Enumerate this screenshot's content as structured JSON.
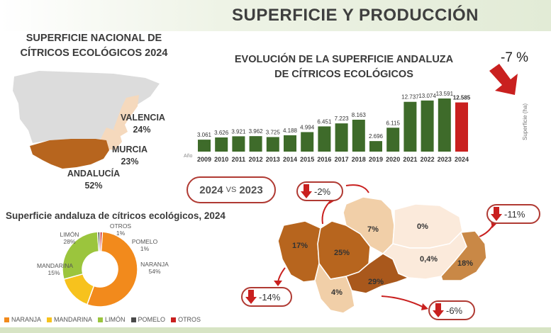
{
  "header": {
    "title": "SUPERFICIE Y PRODUCCIÓN"
  },
  "national": {
    "title_line1": "SUPERFICIE NACIONAL DE",
    "title_line2": "CÍTRICOS ECOLÓGICOS 2024",
    "regions": [
      {
        "name": "VALENCIA",
        "pct": "24%"
      },
      {
        "name": "MURCIA",
        "pct": "23%"
      },
      {
        "name": "ANDALUCÍA",
        "pct": "52%"
      }
    ]
  },
  "evolution": {
    "title_line1": "EVOLUCIÓN DE LA SUPERFICIE ANDALUZA",
    "title_line2": "DE CÍTRICOS ECOLÓGICOS",
    "change": "-7 %"
  },
  "comparison": {
    "year_a": "2024",
    "vs": "VS",
    "year_b": "2023",
    "changes": [
      {
        "id": "north",
        "value": "-2%"
      },
      {
        "id": "east",
        "value": "-11%"
      },
      {
        "id": "west",
        "value": "-14%"
      },
      {
        "id": "south",
        "value": "-6%"
      }
    ],
    "provinces": [
      {
        "id": "huelva",
        "pct": "17%"
      },
      {
        "id": "sevilla",
        "pct": "25%"
      },
      {
        "id": "cordoba",
        "pct": "7%"
      },
      {
        "id": "jaen",
        "pct": "0%"
      },
      {
        "id": "granada",
        "pct": "0,4%"
      },
      {
        "id": "almeria",
        "pct": "18%"
      },
      {
        "id": "malaga",
        "pct": "29%"
      },
      {
        "id": "cadiz",
        "pct": "4%"
      }
    ]
  },
  "pie": {
    "title": "Superficie andaluza de cítricos ecológicos, 2024"
  },
  "colors": {
    "bar": "#3e6b2a",
    "bar_highlight": "#c9201f",
    "naranja": "#f28a1c",
    "mandarina": "#f7c21d",
    "limon": "#9bc53d",
    "pomelo": "#4a4a4a",
    "otros": "#c9201f",
    "andalucia": "#b7651e",
    "valencia_murcia": "#f5d9bd",
    "spain": "#dcdcdc"
  },
  "chart_data": [
    {
      "type": "bar",
      "title": "EVOLUCIÓN DE LA SUPERFICIE ANDALUZA DE CÍTRICOS ECOLÓGICOS",
      "xlabel": "Año",
      "ylabel": "Superficie (ha)",
      "categories": [
        "2009",
        "2010",
        "2011",
        "2012",
        "2013",
        "2014",
        "2015",
        "2016",
        "2017",
        "2018",
        "2019",
        "2020",
        "2021",
        "2022",
        "2023",
        "2024"
      ],
      "values": [
        3061,
        3626,
        3921,
        3962,
        3725,
        4188,
        4994,
        6451,
        7223,
        8163,
        2696,
        6115,
        12737,
        13074,
        13591,
        12585
      ],
      "value_labels": [
        "3.061",
        "3.626",
        "3.921",
        "3.962",
        "3.725",
        "4.188",
        "4.994",
        "6.451",
        "7.223",
        "8.163",
        "2.696",
        "6.115",
        "12.737",
        "13.074",
        "13.591",
        "12.585"
      ],
      "highlight_index": 15,
      "ylim": [
        0,
        14500
      ]
    },
    {
      "type": "pie",
      "title": "Superficie andaluza de cítricos ecológicos, 2024",
      "labels": [
        "NARANJA",
        "MANDARINA",
        "LIMÓN",
        "POMELO",
        "OTROS"
      ],
      "values": [
        54,
        15,
        28,
        1,
        1
      ],
      "value_labels": [
        "54%",
        "15%",
        "28%",
        "1%",
        "1%"
      ],
      "legend_position": "bottom"
    }
  ]
}
